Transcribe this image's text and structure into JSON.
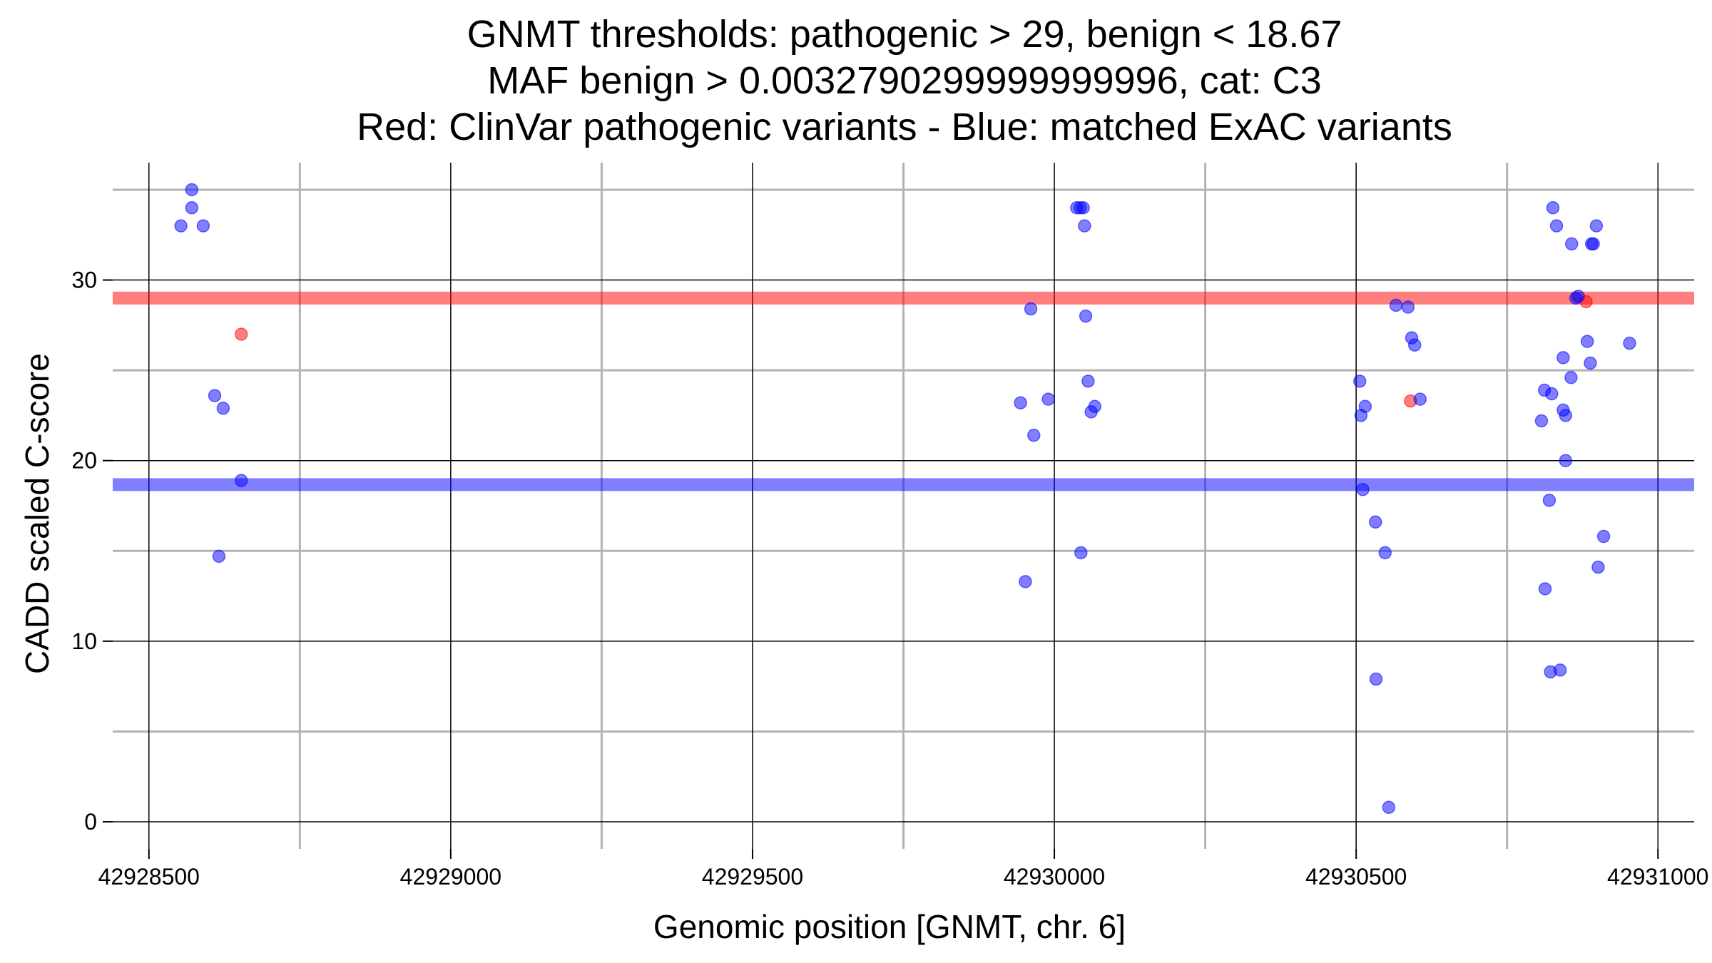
{
  "chart_data": {
    "type": "scatter",
    "title_lines": [
      "GNMT thresholds: pathogenic > 29, benign < 18.67",
      "MAF benign > 0.0032790299999999996, cat: C3",
      "Red: ClinVar pathogenic variants - Blue: matched ExAC variants"
    ],
    "xlabel": "Genomic position [GNMT, chr. 6]",
    "ylabel": "CADD scaled C-score",
    "xlim": [
      42928440,
      42931060
    ],
    "ylim": [
      -1.5,
      36.5
    ],
    "x_ticks": [
      42928500,
      42929000,
      42929500,
      42930000,
      42930500,
      42931000
    ],
    "x_tick_labels": [
      "42928500",
      "42929000",
      "42929500",
      "42930000",
      "42930500",
      "42931000"
    ],
    "x_minor_ticks": [
      42928750,
      42929250,
      42929750,
      42930250,
      42930750
    ],
    "y_ticks": [
      0,
      10,
      20,
      30
    ],
    "y_tick_labels": [
      "0",
      "10",
      "20",
      "30"
    ],
    "y_minor_ticks": [
      5,
      15,
      25,
      35
    ],
    "thresholds": [
      {
        "name": "pathogenic",
        "value": 29,
        "color": "#ff0000"
      },
      {
        "name": "benign",
        "value": 18.67,
        "color": "#0000ff"
      }
    ],
    "series": [
      {
        "name": "ClinVar pathogenic variants",
        "color": "#ff0000",
        "points": [
          [
            42928653,
            27
          ],
          [
            42930590,
            23.3
          ],
          [
            42930881,
            28.8
          ]
        ]
      },
      {
        "name": "matched ExAC variants",
        "color": "#0000ff",
        "points": [
          [
            42928553,
            33
          ],
          [
            42928571,
            35
          ],
          [
            42928571,
            34
          ],
          [
            42928590,
            33
          ],
          [
            42928609,
            23.6
          ],
          [
            42928616,
            14.7
          ],
          [
            42928623,
            22.9
          ],
          [
            42928653,
            18.9
          ],
          [
            42929944,
            23.2
          ],
          [
            42929952,
            13.3
          ],
          [
            42929961,
            28.4
          ],
          [
            42929966,
            21.4
          ],
          [
            42929990,
            23.4
          ],
          [
            42930037,
            34
          ],
          [
            42930043,
            34
          ],
          [
            42930048,
            34
          ],
          [
            42930044,
            14.9
          ],
          [
            42930050,
            33
          ],
          [
            42930052,
            28
          ],
          [
            42930056,
            24.4
          ],
          [
            42930061,
            22.7
          ],
          [
            42930067,
            23
          ],
          [
            42930506,
            24.4
          ],
          [
            42930508,
            22.5
          ],
          [
            42930511,
            18.4
          ],
          [
            42930515,
            23
          ],
          [
            42930532,
            16.6
          ],
          [
            42930533,
            7.9
          ],
          [
            42930548,
            14.9
          ],
          [
            42930554,
            0.8
          ],
          [
            42930566,
            28.6
          ],
          [
            42930586,
            28.5
          ],
          [
            42930592,
            26.8
          ],
          [
            42930597,
            26.4
          ],
          [
            42930606,
            23.4
          ],
          [
            42930807,
            22.2
          ],
          [
            42930812,
            23.9
          ],
          [
            42930813,
            12.9
          ],
          [
            42930820,
            17.8
          ],
          [
            42930822,
            8.3
          ],
          [
            42930824,
            23.7
          ],
          [
            42930826,
            34
          ],
          [
            42930832,
            33
          ],
          [
            42930838,
            8.4
          ],
          [
            42930843,
            25.7
          ],
          [
            42930843,
            22.8
          ],
          [
            42930847,
            22.5
          ],
          [
            42930847,
            20
          ],
          [
            42930856,
            24.6
          ],
          [
            42930857,
            32
          ],
          [
            42930864,
            29
          ],
          [
            42930868,
            29.1
          ],
          [
            42930883,
            26.6
          ],
          [
            42930888,
            25.4
          ],
          [
            42930890,
            32
          ],
          [
            42930893,
            32
          ],
          [
            42930898,
            33
          ],
          [
            42930901,
            14.1
          ],
          [
            42930910,
            15.8
          ],
          [
            42930953,
            26.5
          ]
        ]
      }
    ]
  }
}
